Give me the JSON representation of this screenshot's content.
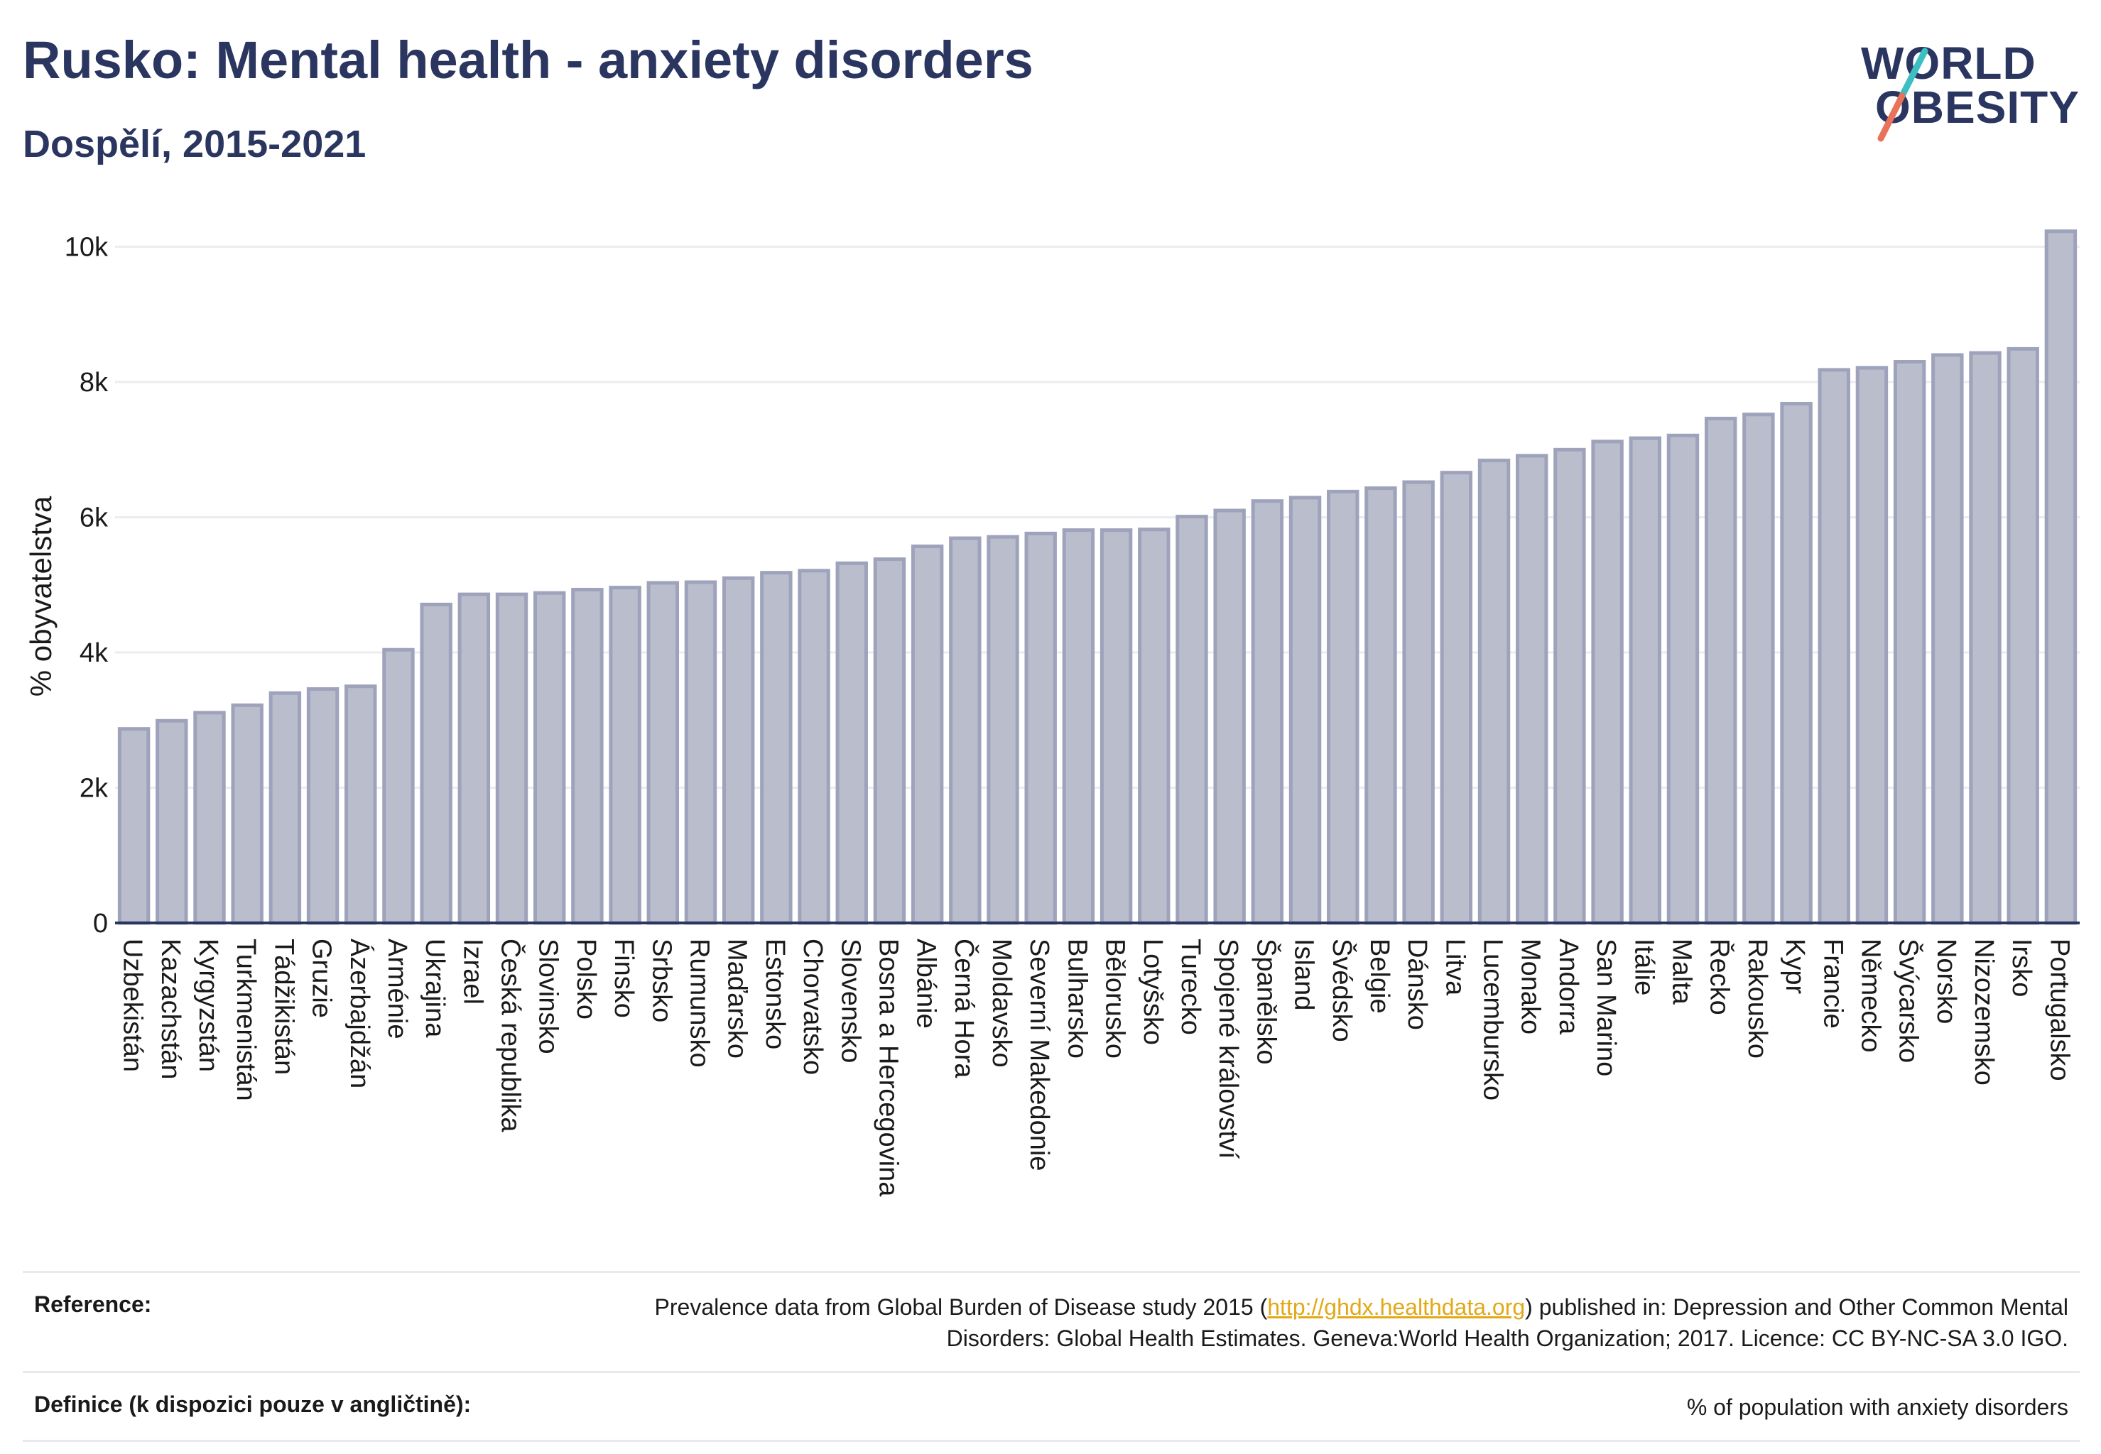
{
  "header": {
    "title": "Rusko: Mental health - anxiety disorders",
    "subtitle": "Dospělí, 2015-2021"
  },
  "logo": {
    "line1": "WORLD",
    "line2": "OBESITY",
    "colors": {
      "text": "#2a3560",
      "slash_top": "#3bbfc2",
      "slash_bottom": "#e8735a"
    }
  },
  "colors": {
    "bar_fill": "#b9bdcc",
    "bar_stroke": "#9ea3bb",
    "axis": "#2a3560",
    "grid": "#ececf0"
  },
  "chart_data": {
    "type": "bar",
    "title": "",
    "xlabel": "",
    "ylabel": "% obyvatelstva",
    "ylim": [
      0,
      10500
    ],
    "yticks": [
      0,
      2000,
      4000,
      6000,
      8000,
      10000
    ],
    "ytick_labels": [
      "0",
      "2k",
      "4k",
      "6k",
      "8k",
      "10k"
    ],
    "grid": true,
    "categories": [
      "Uzbekistán",
      "Kazachstán",
      "Kyrgyzstán",
      "Turkmenistán",
      "Tádžikistán",
      "Gruzie",
      "Ázerbajdžán",
      "Arménie",
      "Ukrajina",
      "Izrael",
      "Česká republika",
      "Slovinsko",
      "Polsko",
      "Finsko",
      "Srbsko",
      "Rumunsko",
      "Maďarsko",
      "Estonsko",
      "Chorvatsko",
      "Slovensko",
      "Bosna a Hercegovina",
      "Albánie",
      "Černá Hora",
      "Moldavsko",
      "Severní Makedonie",
      "Bulharsko",
      "Bělorusko",
      "Lotyšsko",
      "Turecko",
      "Spojené království",
      "Španělsko",
      "Island",
      "Švédsko",
      "Belgie",
      "Dánsko",
      "Litva",
      "Lucembursko",
      "Monako",
      "Andorra",
      "San Marino",
      "Itálie",
      "Malta",
      "Řecko",
      "Rakousko",
      "Kypr",
      "Francie",
      "Německo",
      "Švýcarsko",
      "Norsko",
      "Nizozemsko",
      "Irsko",
      "Portugalsko"
    ],
    "values": [
      2870,
      2990,
      3110,
      3220,
      3400,
      3460,
      3500,
      4040,
      4710,
      4860,
      4860,
      4880,
      4930,
      4960,
      5030,
      5040,
      5100,
      5180,
      5210,
      5320,
      5380,
      5570,
      5690,
      5710,
      5760,
      5810,
      5810,
      5820,
      6010,
      6100,
      6240,
      6290,
      6380,
      6430,
      6520,
      6660,
      6840,
      6910,
      7000,
      7120,
      7170,
      7210,
      7460,
      7520,
      7680,
      8180,
      8210,
      8300,
      8400,
      8430,
      8490,
      10230
    ]
  },
  "footer": {
    "reference_label": "Reference:",
    "reference_pre": "Prevalence data from Global Burden of Disease study 2015 (",
    "reference_link": "http://ghdx.healthdata.org",
    "reference_post": ") published in: Depression and Other Common Mental Disorders: Global Health Estimates. Geneva:World Health Organization; 2017. Licence: CC BY-NC-SA 3.0 IGO.",
    "definition_label": "Definice (k dispozici pouze v angličtině):",
    "definition_text": "% of population with anxiety disorders"
  }
}
